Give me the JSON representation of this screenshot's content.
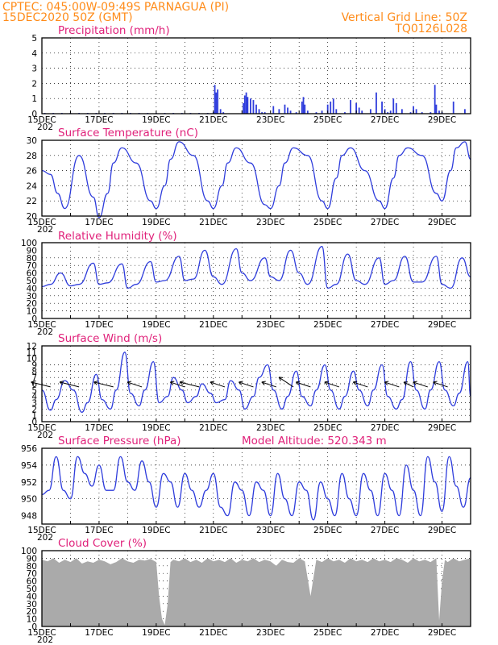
{
  "header": {
    "left_line1": "CPTEC:   045:00W-09:49S   PARNAGUA (PI)",
    "left_line2": "15DEC2020 50Z (GMT)",
    "right_line1": "Vertical Grid Line: 50Z",
    "right_line2": "TQ0126L028"
  },
  "colors": {
    "header": "#ff8c1a",
    "panel_title": "#e0217a",
    "series": "#2f3ddc",
    "cloud_fill": "#aaaaaa",
    "wind_arrow": "#000000"
  },
  "x_axis": {
    "tick_labels": [
      "15DEC",
      "17DEC",
      "19DEC",
      "21DEC",
      "23DEC",
      "25DEC",
      "27DEC",
      "29DEC"
    ],
    "year_fragment": "202"
  },
  "chart_data": [
    {
      "id": "precipitation",
      "type": "bar",
      "title": "Precipitation (mm/h)",
      "ylim": [
        0,
        5
      ],
      "yticks": [
        0,
        1,
        2,
        3,
        4,
        5
      ],
      "x_unit": "days since 15DEC 00Z",
      "x": [
        0.1,
        0.4,
        0.7,
        1.0,
        1.3,
        1.6,
        1.9,
        2.2,
        2.5,
        2.8,
        3.1,
        3.4,
        3.7,
        4.0,
        4.3,
        4.6,
        4.9,
        5.2,
        5.5,
        5.8,
        6.0,
        6.05,
        6.1,
        6.15,
        6.25,
        6.35,
        7.05,
        7.1,
        7.15,
        7.2,
        7.3,
        7.4,
        7.5,
        7.6,
        7.7,
        7.8,
        8.1,
        8.3,
        8.5,
        8.6,
        8.7,
        8.9,
        9.1,
        9.15,
        9.2,
        9.3,
        9.6,
        9.8,
        10.0,
        10.1,
        10.2,
        10.3,
        10.6,
        10.8,
        11.0,
        11.1,
        11.2,
        11.5,
        11.7,
        11.9,
        12.0,
        12.1,
        12.2,
        12.3,
        12.4,
        12.6,
        12.9,
        13.0,
        13.1,
        13.3,
        13.6,
        13.75,
        13.8,
        13.9,
        14.0,
        14.4,
        14.8
      ],
      "values": [
        0.05,
        0.05,
        0.05,
        0.05,
        0.05,
        0.05,
        0.05,
        0.05,
        0.05,
        0.05,
        0.05,
        0.05,
        0.05,
        0.05,
        0.05,
        0.05,
        0.05,
        0.05,
        0.05,
        0.05,
        0.1,
        1.9,
        1.4,
        1.6,
        0.3,
        0.1,
        0.7,
        1.2,
        1.4,
        1.1,
        1.0,
        0.9,
        0.6,
        0.3,
        0.1,
        0.1,
        0.5,
        0.3,
        0.6,
        0.4,
        0.2,
        0.1,
        0.8,
        1.1,
        0.6,
        0.2,
        0.1,
        0.2,
        0.6,
        0.8,
        1.0,
        0.3,
        0.1,
        0.9,
        0.7,
        0.4,
        0.2,
        0.3,
        1.4,
        0.8,
        0.3,
        0.1,
        0.2,
        1.0,
        0.7,
        0.3,
        0.1,
        0.5,
        0.3,
        0.1,
        0.1,
        1.9,
        0.6,
        0.2,
        0.1,
        0.8,
        0.3
      ]
    },
    {
      "id": "temperature",
      "type": "line",
      "title": "Surface Temperature (nC)",
      "ylim": [
        20,
        30
      ],
      "yticks": [
        20,
        22,
        24,
        26,
        28,
        30
      ],
      "series": [
        {
          "x": [
            0.0,
            0.3,
            0.55,
            0.8,
            1.3,
            1.8,
            2.0,
            2.3,
            2.5,
            2.8,
            3.3,
            3.8,
            4.0,
            4.3,
            4.5,
            4.8,
            5.3,
            5.8,
            6.0,
            6.3,
            6.5,
            6.8,
            7.3,
            7.8,
            8.0,
            8.3,
            8.5,
            8.8,
            9.3,
            9.8,
            10.0,
            10.3,
            10.5,
            10.8,
            11.3,
            11.8,
            12.0,
            12.3,
            12.5,
            12.8,
            13.3,
            13.8,
            14.0,
            14.3,
            14.5,
            14.8,
            15.0
          ],
          "y": [
            26,
            25.5,
            23,
            21,
            28,
            22.5,
            19.8,
            23,
            27,
            29,
            27,
            22,
            21,
            24,
            27.5,
            29.8,
            28,
            22,
            21,
            24,
            27,
            29,
            27,
            21.5,
            21,
            24,
            27,
            29,
            28,
            22,
            21,
            25,
            28,
            29,
            26,
            22,
            21,
            25,
            28,
            29,
            28,
            23,
            22,
            26,
            29,
            29.8,
            27.5
          ]
        }
      ]
    },
    {
      "id": "humidity",
      "type": "line",
      "title": "Relative Humidity (%)",
      "ylim": [
        0,
        100
      ],
      "yticks": [
        0,
        10,
        20,
        30,
        40,
        50,
        60,
        70,
        80,
        90,
        100
      ],
      "series": [
        {
          "x": [
            0.0,
            0.3,
            0.65,
            1.0,
            1.3,
            1.8,
            2.0,
            2.3,
            2.8,
            3.0,
            3.3,
            3.8,
            4.0,
            4.3,
            4.8,
            5.0,
            5.3,
            5.7,
            6.0,
            6.3,
            6.8,
            7.0,
            7.3,
            7.8,
            8.0,
            8.3,
            8.7,
            9.0,
            9.3,
            9.8,
            10.0,
            10.3,
            10.7,
            11.0,
            11.3,
            11.8,
            12.0,
            12.3,
            12.7,
            13.0,
            13.3,
            13.8,
            14.0,
            14.3,
            14.7,
            15.0
          ],
          "y": [
            42,
            45,
            60,
            43,
            45,
            73,
            45,
            47,
            72,
            40,
            45,
            75,
            48,
            50,
            82,
            50,
            52,
            90,
            55,
            45,
            92,
            60,
            50,
            80,
            55,
            50,
            90,
            60,
            45,
            95,
            40,
            45,
            85,
            50,
            45,
            80,
            45,
            50,
            82,
            48,
            48,
            82,
            45,
            40,
            80,
            55
          ]
        }
      ]
    },
    {
      "id": "wind",
      "type": "line",
      "title": "Surface Wind (m/s)",
      "ylim": [
        0,
        12
      ],
      "yticks": [
        0,
        1,
        2,
        3,
        4,
        5,
        6,
        7,
        8,
        9,
        10,
        11,
        12
      ],
      "series": [
        {
          "x": [
            0.0,
            0.3,
            0.5,
            0.8,
            1.1,
            1.4,
            1.6,
            1.9,
            2.1,
            2.4,
            2.6,
            2.9,
            3.1,
            3.4,
            3.6,
            3.9,
            4.1,
            4.4,
            4.6,
            4.9,
            5.1,
            5.4,
            5.6,
            5.9,
            6.1,
            6.4,
            6.6,
            6.9,
            7.1,
            7.4,
            7.6,
            7.9,
            8.1,
            8.4,
            8.6,
            8.9,
            9.1,
            9.4,
            9.6,
            9.9,
            10.1,
            10.4,
            10.6,
            10.9,
            11.1,
            11.4,
            11.6,
            11.9,
            12.1,
            12.4,
            12.6,
            12.9,
            13.1,
            13.4,
            13.6,
            13.9,
            14.1,
            14.4,
            14.6,
            14.9,
            15.0
          ],
          "y": [
            5,
            1.8,
            3.5,
            6.5,
            5,
            1.5,
            3,
            7.5,
            3.5,
            2,
            5,
            11,
            4.5,
            2.5,
            5,
            9.5,
            3,
            4,
            7,
            5,
            3,
            4,
            6,
            4.5,
            3,
            3.5,
            6.5,
            5,
            2,
            4,
            7,
            9,
            5,
            2,
            4,
            8,
            4,
            2.5,
            5,
            9,
            5,
            2,
            4,
            8,
            5,
            2.5,
            5,
            9,
            4,
            2,
            3.5,
            9.5,
            5,
            2,
            5,
            9.5,
            5,
            2.5,
            4.5,
            9.5,
            4
          ]
        }
      ],
      "arrows": [
        {
          "x": 0.3,
          "u": -4,
          "v": 1
        },
        {
          "x": 1.3,
          "u": -4,
          "v": 1
        },
        {
          "x": 2.5,
          "u": -4,
          "v": 1
        },
        {
          "x": 3.5,
          "u": -3,
          "v": 1
        },
        {
          "x": 5.0,
          "u": -3,
          "v": 1
        },
        {
          "x": 5.5,
          "u": -4,
          "v": 1
        },
        {
          "x": 6.4,
          "u": -3,
          "v": 1
        },
        {
          "x": 7.4,
          "u": -3,
          "v": 1
        },
        {
          "x": 8.2,
          "u": -3,
          "v": 1
        },
        {
          "x": 8.8,
          "u": -3,
          "v": 2
        },
        {
          "x": 9.4,
          "u": -3,
          "v": 1
        },
        {
          "x": 10.4,
          "u": -3,
          "v": 1
        },
        {
          "x": 11.4,
          "u": -3,
          "v": 1
        },
        {
          "x": 12.5,
          "u": -3,
          "v": 1
        },
        {
          "x": 13.0,
          "u": -2,
          "v": 1
        },
        {
          "x": 13.5,
          "u": -3,
          "v": 1
        },
        {
          "x": 14.2,
          "u": -3,
          "v": 1
        }
      ]
    },
    {
      "id": "pressure",
      "type": "line",
      "title": "Surface Pressure (hPa)",
      "subtitle": "Model Altitude: 520.343  m",
      "ylim": [
        947,
        956
      ],
      "yticks": [
        948,
        950,
        952,
        954,
        956
      ],
      "series": [
        {
          "x": [
            0.0,
            0.25,
            0.5,
            0.75,
            1.0,
            1.25,
            1.5,
            1.75,
            2.0,
            2.25,
            2.5,
            2.75,
            3.0,
            3.25,
            3.5,
            3.75,
            4.0,
            4.25,
            4.5,
            4.75,
            5.0,
            5.25,
            5.5,
            5.75,
            6.0,
            6.25,
            6.5,
            6.75,
            7.0,
            7.25,
            7.5,
            7.75,
            8.0,
            8.25,
            8.5,
            8.75,
            9.0,
            9.25,
            9.5,
            9.75,
            10.0,
            10.25,
            10.5,
            10.75,
            11.0,
            11.25,
            11.5,
            11.75,
            12.0,
            12.25,
            12.5,
            12.75,
            13.0,
            13.25,
            13.5,
            13.75,
            14.0,
            14.25,
            14.5,
            14.75,
            15.0
          ],
          "y": [
            950.5,
            951,
            955,
            951,
            950,
            955,
            953,
            951.5,
            954,
            951,
            951,
            955,
            952,
            951,
            954.5,
            952,
            949,
            953,
            952,
            949,
            953,
            951,
            949,
            951,
            953,
            949,
            948,
            952,
            951,
            948,
            952,
            951,
            948,
            953,
            950,
            948,
            952,
            951,
            947.5,
            952,
            950,
            948,
            953,
            950,
            948,
            953,
            951,
            948,
            953,
            951,
            948,
            954,
            951,
            948,
            955,
            952,
            948.5,
            955,
            951.5,
            949,
            952.5
          ]
        }
      ]
    },
    {
      "id": "cloud",
      "type": "area",
      "title": "Cloud Cover (%)",
      "ylim": [
        0,
        100
      ],
      "yticks": [
        0,
        10,
        20,
        30,
        40,
        50,
        60,
        70,
        80,
        90,
        100
      ],
      "series": [
        {
          "x": [
            0.0,
            0.2,
            0.4,
            0.6,
            0.8,
            1.0,
            1.2,
            1.4,
            1.6,
            1.8,
            2.0,
            2.2,
            2.4,
            2.6,
            2.8,
            3.0,
            3.2,
            3.4,
            3.6,
            3.8,
            4.0,
            4.1,
            4.2,
            4.3,
            4.4,
            4.5,
            4.6,
            4.8,
            5.0,
            5.2,
            5.4,
            5.6,
            5.8,
            6.0,
            6.2,
            6.4,
            6.6,
            6.8,
            7.0,
            7.2,
            7.4,
            7.6,
            7.8,
            8.0,
            8.2,
            8.4,
            8.6,
            8.8,
            9.0,
            9.2,
            9.4,
            9.6,
            9.8,
            10.0,
            10.2,
            10.4,
            10.6,
            10.8,
            11.0,
            11.2,
            11.4,
            11.6,
            11.8,
            12.0,
            12.2,
            12.4,
            12.6,
            12.8,
            13.0,
            13.2,
            13.4,
            13.6,
            13.8,
            13.9,
            14.0,
            14.1,
            14.2,
            14.4,
            14.6,
            14.8,
            15.0
          ],
          "y": [
            88,
            86,
            90,
            84,
            88,
            85,
            90,
            83,
            86,
            84,
            88,
            86,
            82,
            85,
            90,
            86,
            84,
            88,
            87,
            89,
            85,
            40,
            10,
            2,
            30,
            85,
            88,
            86,
            90,
            85,
            88,
            84,
            90,
            86,
            88,
            85,
            90,
            84,
            88,
            86,
            90,
            85,
            88,
            86,
            80,
            88,
            85,
            84,
            90,
            86,
            40,
            88,
            85,
            90,
            86,
            88,
            84,
            90,
            86,
            88,
            85,
            90,
            86,
            88,
            85,
            90,
            88,
            84,
            90,
            86,
            88,
            85,
            90,
            8,
            60,
            88,
            85,
            90,
            86,
            88,
            90
          ]
        }
      ]
    }
  ],
  "panels": [
    {
      "title": "Precipitation (mm/h)",
      "subtitle": ""
    },
    {
      "title": "Surface Temperature (nC)",
      "subtitle": ""
    },
    {
      "title": "Relative Humidity (%)",
      "subtitle": ""
    },
    {
      "title": "Surface Wind (m/s)",
      "subtitle": ""
    },
    {
      "title": "Surface Pressure (hPa)",
      "subtitle": "Model Altitude: 520.343  m"
    },
    {
      "title": "Cloud Cover (%)",
      "subtitle": ""
    }
  ]
}
